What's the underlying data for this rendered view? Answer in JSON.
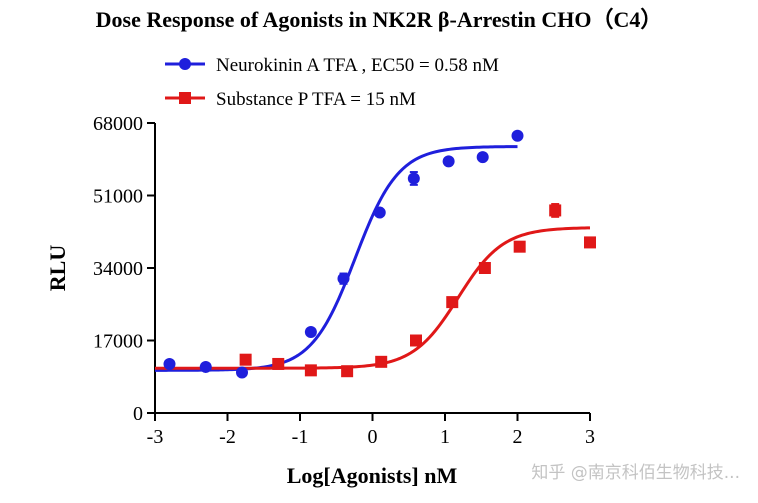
{
  "chart_data": {
    "type": "scatter",
    "title": "Dose Response of Agonists in NK2R β-Arrestin CHO（C4）",
    "xlabel": "Log[Agonists] nM",
    "ylabel": "RLU",
    "xlim": [
      -3,
      3
    ],
    "ylim": [
      0,
      68000
    ],
    "x_ticks": [
      -3,
      -2,
      -1,
      0,
      1,
      2,
      3
    ],
    "y_ticks": [
      0,
      17000,
      34000,
      51000,
      68000
    ],
    "grid": false,
    "legend_position": "top",
    "series": [
      {
        "name": "Neurokinin A TFA , EC50 = 0.58 nM",
        "color": "#1f1fdc",
        "marker": "circle",
        "x": [
          -2.8,
          -2.3,
          -1.8,
          -0.85,
          -0.4,
          0.1,
          0.57,
          1.05,
          1.52,
          2.0
        ],
        "y": [
          11500,
          10800,
          9500,
          19000,
          31500,
          47000,
          55000,
          59000,
          60000,
          65000
        ],
        "error": [
          0,
          0,
          0,
          0,
          1200,
          0,
          1500,
          0,
          0,
          0
        ],
        "fit": {
          "bottom": 10000,
          "top": 62500,
          "logEC50": -0.24,
          "hill": 1.45,
          "x_range": [
            -3,
            2.0
          ]
        }
      },
      {
        "name": "Substance P TFA  = 15 nM",
        "color": "#e01818",
        "marker": "square",
        "x": [
          -1.75,
          -1.3,
          -0.85,
          -0.35,
          0.12,
          0.6,
          1.1,
          1.55,
          2.03,
          2.52,
          3.0
        ],
        "y": [
          12500,
          11500,
          10000,
          9800,
          12000,
          17000,
          26000,
          34000,
          39000,
          47500,
          40000
        ],
        "error": [
          0,
          0,
          0,
          0,
          0,
          0,
          0,
          0,
          0,
          1500,
          0
        ],
        "fit": {
          "bottom": 10500,
          "top": 43500,
          "logEC50": 1.18,
          "hill": 1.4,
          "x_range": [
            -3,
            3
          ]
        }
      }
    ]
  },
  "watermark": "知乎 @南京科佰生物科技..."
}
